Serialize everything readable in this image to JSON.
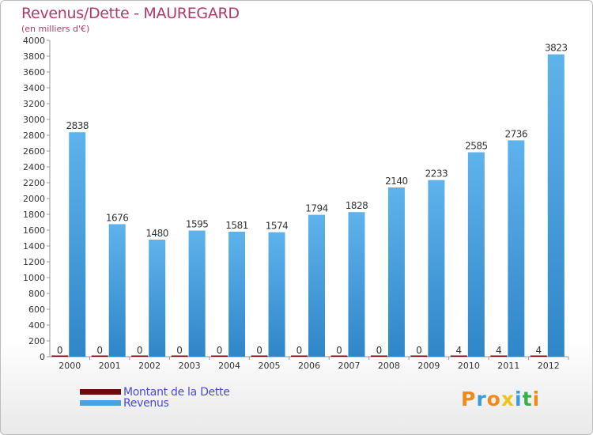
{
  "header": {
    "title": "Revenus/Dette - MAUREGARD",
    "subtitle": "(en milliers d'€)"
  },
  "legend": [
    {
      "label": "Montant de la Dette",
      "color": "#6b0a0a"
    },
    {
      "label": "Revenus",
      "color": "#4aa3e0"
    }
  ],
  "logo": {
    "letters": [
      "P",
      "r",
      "o",
      "x",
      "i",
      "t",
      "i"
    ],
    "colors": [
      "#f08a1c",
      "#3a9ae0",
      "#f08a1c",
      "#f0c21c",
      "#3a9ae0",
      "#3ab04a",
      "#f08a1c"
    ]
  },
  "chart_data": {
    "type": "bar",
    "categories": [
      "2000",
      "2001",
      "2002",
      "2003",
      "2004",
      "2005",
      "2006",
      "2007",
      "2008",
      "2009",
      "2010",
      "2011",
      "2012"
    ],
    "series": [
      {
        "name": "Montant de la Dette",
        "values": [
          0,
          0,
          0,
          0,
          0,
          0,
          0,
          0,
          0,
          0,
          4,
          4,
          4
        ],
        "color": "#6b0a0a"
      },
      {
        "name": "Revenus",
        "values": [
          2838,
          1676,
          1480,
          1595,
          1581,
          1574,
          1794,
          1828,
          2140,
          2233,
          2585,
          2736,
          3823
        ],
        "color": "#4aa3e0"
      }
    ],
    "ylim": [
      0,
      4000
    ],
    "yticks": [
      0,
      200,
      400,
      600,
      800,
      1000,
      1200,
      1400,
      1600,
      1800,
      2000,
      2200,
      2400,
      2600,
      2800,
      3000,
      3200,
      3400,
      3600,
      3800,
      4000
    ],
    "grid": false
  }
}
